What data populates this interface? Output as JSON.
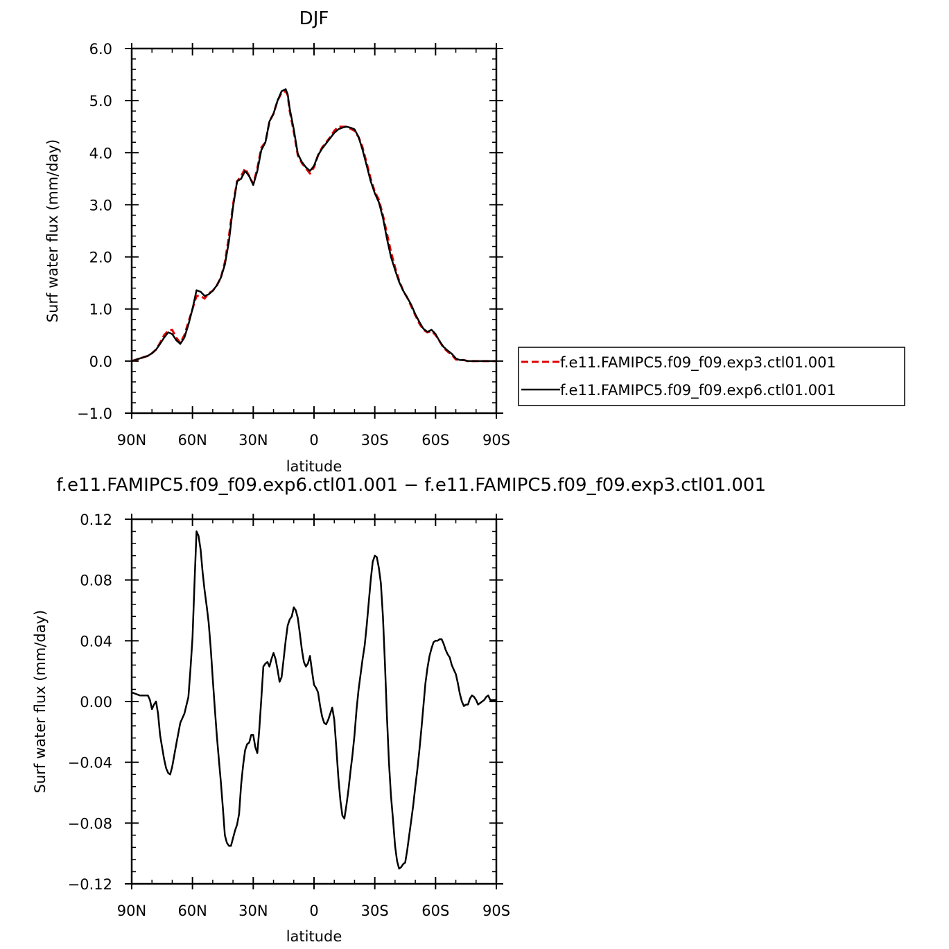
{
  "colors": {
    "exp3": "#e00000",
    "exp6": "#000000",
    "axis": "#000000"
  },
  "chart_data": [
    {
      "type": "line",
      "title": "DJF",
      "xlabel": "latitude",
      "ylabel": "Surf water flux (mm/day)",
      "xlim": [
        90,
        -90
      ],
      "ylim": [
        -1.0,
        6.0
      ],
      "x_ticks": [
        "90N",
        "60N",
        "30N",
        "0",
        "30S",
        "60S",
        "90S"
      ],
      "y_ticks": [
        "−1.0",
        "0.0",
        "1.0",
        "2.0",
        "3.0",
        "4.0",
        "5.0",
        "6.0"
      ],
      "legend_position": "right",
      "series": [
        {
          "name": "f.e11.FAMIPC5.f09_f09.exp3.ctl01.001",
          "style": "dashed",
          "color": "#e00000",
          "x": [
            90,
            86,
            82,
            80,
            78,
            76,
            74,
            72,
            70,
            68,
            66,
            64,
            62,
            60,
            58,
            56,
            54,
            52,
            50,
            48,
            46,
            44,
            42,
            40,
            38,
            36,
            34,
            32,
            30,
            28,
            26,
            24,
            22,
            20,
            18,
            16,
            14,
            13,
            12,
            10,
            8,
            6,
            4,
            2,
            0,
            -2,
            -4,
            -6,
            -8,
            -10,
            -12,
            -14,
            -16,
            -18,
            -20,
            -22,
            -24,
            -26,
            -28,
            -30,
            -32,
            -34,
            -36,
            -38,
            -40,
            -42,
            -44,
            -46,
            -48,
            -50,
            -52,
            -54,
            -56,
            -58,
            -60,
            -62,
            -64,
            -66,
            -68,
            -70,
            -72,
            -74,
            -76,
            -78,
            -80,
            -82,
            -84,
            -86,
            -88,
            -90
          ],
          "y": [
            0.0,
            0.05,
            0.1,
            0.15,
            0.22,
            0.35,
            0.5,
            0.58,
            0.6,
            0.45,
            0.35,
            0.5,
            0.75,
            1.0,
            1.25,
            1.25,
            1.2,
            1.3,
            1.35,
            1.45,
            1.6,
            1.9,
            2.4,
            3.0,
            3.45,
            3.55,
            3.7,
            3.55,
            3.4,
            3.7,
            4.1,
            4.2,
            4.6,
            4.75,
            5.0,
            5.15,
            5.18,
            5.1,
            4.8,
            4.4,
            3.95,
            3.8,
            3.7,
            3.6,
            3.72,
            3.95,
            4.1,
            4.2,
            4.3,
            4.42,
            4.5,
            4.5,
            4.5,
            4.46,
            4.42,
            4.3,
            4.1,
            3.8,
            3.5,
            3.25,
            3.1,
            2.8,
            2.45,
            2.1,
            1.8,
            1.55,
            1.35,
            1.22,
            1.05,
            0.88,
            0.72,
            0.6,
            0.55,
            0.58,
            0.5,
            0.38,
            0.25,
            0.18,
            0.12,
            0.03,
            0.02,
            0.02,
            0.0,
            0.0,
            0.0,
            0.0,
            0.0,
            0.0,
            0.0,
            0.0
          ]
        },
        {
          "name": "f.e11.FAMIPC5.f09_f09.exp6.ctl01.001",
          "style": "solid",
          "color": "#000000",
          "x": [
            90,
            86,
            82,
            80,
            78,
            76,
            74,
            72,
            70,
            68,
            66,
            64,
            62,
            60,
            58,
            56,
            54,
            52,
            50,
            48,
            46,
            44,
            42,
            40,
            38,
            36,
            34,
            32,
            30,
            28,
            26,
            24,
            22,
            20,
            18,
            16,
            14,
            13,
            12,
            10,
            8,
            6,
            4,
            2,
            0,
            -2,
            -4,
            -6,
            -8,
            -10,
            -12,
            -14,
            -16,
            -18,
            -20,
            -22,
            -24,
            -26,
            -28,
            -30,
            -32,
            -34,
            -36,
            -38,
            -40,
            -42,
            -44,
            -46,
            -48,
            -50,
            -52,
            -54,
            -56,
            -58,
            -60,
            -62,
            -64,
            -66,
            -68,
            -70,
            -72,
            -74,
            -76,
            -78,
            -80,
            -82,
            -84,
            -86,
            -88,
            -90
          ],
          "y": [
            0.0,
            0.05,
            0.1,
            0.15,
            0.22,
            0.33,
            0.45,
            0.55,
            0.52,
            0.4,
            0.33,
            0.45,
            0.7,
            1.0,
            1.36,
            1.33,
            1.25,
            1.28,
            1.35,
            1.45,
            1.6,
            1.85,
            2.3,
            2.95,
            3.45,
            3.5,
            3.65,
            3.55,
            3.38,
            3.65,
            4.05,
            4.2,
            4.6,
            4.75,
            5.0,
            5.18,
            5.22,
            5.12,
            4.85,
            4.45,
            3.98,
            3.82,
            3.72,
            3.65,
            3.75,
            3.95,
            4.08,
            4.18,
            4.28,
            4.38,
            4.45,
            4.48,
            4.5,
            4.48,
            4.45,
            4.3,
            4.05,
            3.75,
            3.45,
            3.22,
            3.05,
            2.75,
            2.35,
            2.0,
            1.75,
            1.52,
            1.35,
            1.22,
            1.08,
            0.9,
            0.75,
            0.62,
            0.56,
            0.6,
            0.52,
            0.38,
            0.27,
            0.2,
            0.14,
            0.05,
            0.02,
            0.02,
            0.0,
            0.0,
            0.0,
            0.0,
            0.0,
            0.0,
            0.0,
            0.0
          ]
        }
      ]
    },
    {
      "type": "line",
      "title": "f.e11.FAMIPC5.f09_f09.exp6.ctl01.001 − f.e11.FAMIPC5.f09_f09.exp3.ctl01.001",
      "xlabel": "latitude",
      "ylabel": "Surf water flux (mm/day)",
      "xlim": [
        90,
        -90
      ],
      "ylim": [
        -0.12,
        0.12
      ],
      "x_ticks": [
        "90N",
        "60N",
        "30N",
        "0",
        "30S",
        "60S",
        "90S"
      ],
      "y_ticks": [
        "−0.12",
        "−0.08",
        "−0.04",
        "0.00",
        "0.04",
        "0.08",
        "0.12"
      ],
      "series": [
        {
          "color": "#000000",
          "x": [
            90,
            88,
            86,
            84,
            82,
            81,
            80,
            79,
            78,
            77,
            76,
            75,
            74,
            73,
            72,
            71,
            70,
            68,
            66,
            64,
            62,
            61,
            60,
            59,
            58,
            57,
            56,
            55,
            54,
            53,
            52,
            51,
            50,
            49,
            48,
            47,
            46,
            45,
            44,
            43,
            42,
            41,
            40,
            39,
            38,
            37,
            36,
            35,
            34,
            33,
            32,
            31,
            30,
            29,
            28,
            27,
            26,
            25,
            24,
            23,
            22,
            21,
            20,
            19,
            18,
            17,
            16,
            15,
            14,
            13,
            12,
            11,
            10,
            9,
            8,
            7,
            6,
            5,
            4,
            3,
            2,
            1,
            0,
            -1,
            -2,
            -3,
            -4,
            -5,
            -6,
            -7,
            -8,
            -9,
            -10,
            -11,
            -12,
            -13,
            -14,
            -15,
            -16,
            -17,
            -18,
            -19,
            -20,
            -21,
            -22,
            -23,
            -24,
            -25,
            -26,
            -27,
            -28,
            -29,
            -30,
            -31,
            -32,
            -33,
            -34,
            -35,
            -36,
            -37,
            -38,
            -39,
            -40,
            -41,
            -42,
            -43,
            -44,
            -45,
            -46,
            -47,
            -48,
            -49,
            -50,
            -51,
            -52,
            -53,
            -54,
            -55,
            -56,
            -57,
            -58,
            -59,
            -60,
            -61,
            -62,
            -63,
            -64,
            -65,
            -66,
            -67,
            -68,
            -69,
            -70,
            -71,
            -72,
            -73,
            -74,
            -75,
            -76,
            -77,
            -78,
            -79,
            -80,
            -81,
            -82,
            -83,
            -84,
            -85,
            -86,
            -87,
            -88,
            -89,
            -90
          ],
          "y": [
            0.006,
            0.005,
            0.004,
            0.004,
            0.004,
            0.001,
            -0.005,
            -0.002,
            0.0,
            -0.008,
            -0.022,
            -0.03,
            -0.038,
            -0.044,
            -0.047,
            -0.048,
            -0.043,
            -0.028,
            -0.014,
            -0.008,
            0.003,
            0.021,
            0.042,
            0.078,
            0.112,
            0.109,
            0.1,
            0.085,
            0.073,
            0.063,
            0.052,
            0.035,
            0.015,
            -0.004,
            -0.022,
            -0.038,
            -0.053,
            -0.07,
            -0.088,
            -0.093,
            -0.095,
            -0.095,
            -0.09,
            -0.085,
            -0.081,
            -0.074,
            -0.055,
            -0.042,
            -0.032,
            -0.028,
            -0.027,
            -0.022,
            -0.022,
            -0.03,
            -0.034,
            -0.018,
            0.002,
            0.023,
            0.025,
            0.026,
            0.023,
            0.028,
            0.032,
            0.028,
            0.021,
            0.013,
            0.016,
            0.028,
            0.04,
            0.05,
            0.054,
            0.056,
            0.062,
            0.06,
            0.055,
            0.045,
            0.034,
            0.026,
            0.023,
            0.025,
            0.03,
            0.02,
            0.011,
            0.009,
            0.006,
            -0.003,
            -0.01,
            -0.014,
            -0.015,
            -0.012,
            -0.008,
            -0.004,
            -0.012,
            -0.03,
            -0.05,
            -0.065,
            -0.075,
            -0.077,
            -0.068,
            -0.058,
            -0.046,
            -0.035,
            -0.022,
            -0.005,
            0.008,
            0.018,
            0.028,
            0.037,
            0.05,
            0.065,
            0.08,
            0.092,
            0.096,
            0.095,
            0.088,
            0.078,
            0.056,
            0.025,
            -0.01,
            -0.04,
            -0.062,
            -0.078,
            -0.095,
            -0.105,
            -0.11,
            -0.109,
            -0.107,
            -0.106,
            -0.098,
            -0.088,
            -0.078,
            -0.068,
            -0.056,
            -0.045,
            -0.032,
            -0.018,
            -0.003,
            0.012,
            0.022,
            0.03,
            0.035,
            0.039,
            0.04,
            0.04,
            0.041,
            0.041,
            0.038,
            0.034,
            0.031,
            0.029,
            0.024,
            0.021,
            0.018,
            0.012,
            0.005,
            0.0,
            -0.003,
            -0.002,
            -0.002,
            0.002,
            0.004,
            0.003,
            0.001,
            -0.002,
            -0.001,
            0.0,
            0.001,
            0.003,
            0.004,
            0.001,
            0.001,
            0.001,
            0.001
          ]
        }
      ]
    }
  ]
}
